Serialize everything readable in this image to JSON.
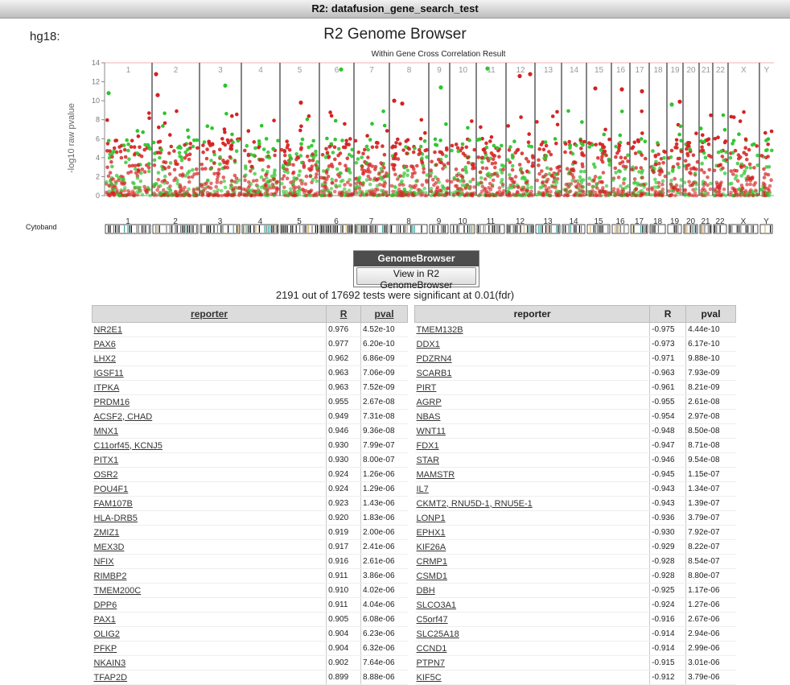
{
  "window_title": "R2: datafusion_gene_search_test",
  "genome": "hg18:",
  "browser_title": "R2 Genome Browser",
  "plot_title": "Within Gene Cross Correlation Result",
  "y_axis_label": "-log10 raw pvalue",
  "y_ticks": [
    "0",
    "2",
    "4",
    "6",
    "8",
    "10",
    "12",
    "14"
  ],
  "chromosomes": [
    "1",
    "2",
    "3",
    "4",
    "5",
    "6",
    "7",
    "8",
    "9",
    "10",
    "11",
    "12",
    "13",
    "14",
    "15",
    "16",
    "17",
    "18",
    "19",
    "20",
    "21",
    "22",
    "X",
    "Y"
  ],
  "cytoband_label": "Cytoband",
  "colors": {
    "positive": "#d42222",
    "negative": "#2cc52c",
    "header_bar": "#4d4d4d"
  },
  "genomebrowser": {
    "header": "GenomeBrowser",
    "button": "View in R2 GenomeBrowser"
  },
  "significance_text": "2191 out of 17692 tests were significant at 0.01(fdr)",
  "left_table": {
    "headers": [
      "reporter",
      "R",
      "pval"
    ],
    "rows": [
      [
        "NR2E1",
        "0.976",
        "4.52e-10"
      ],
      [
        "PAX6",
        "0.977",
        "6.20e-10"
      ],
      [
        "LHX2",
        "0.962",
        "6.86e-09"
      ],
      [
        "IGSF11",
        "0.963",
        "7.06e-09"
      ],
      [
        "ITPKA",
        "0.963",
        "7.52e-09"
      ],
      [
        "PRDM16",
        "0.955",
        "2.67e-08"
      ],
      [
        "ACSF2, CHAD",
        "0.949",
        "7.31e-08"
      ],
      [
        "MNX1",
        "0.946",
        "9.36e-08"
      ],
      [
        "C11orf45, KCNJ5",
        "0.930",
        "7.99e-07"
      ],
      [
        "PITX1",
        "0.930",
        "8.00e-07"
      ],
      [
        "OSR2",
        "0.924",
        "1.26e-06"
      ],
      [
        "POU4F1",
        "0.924",
        "1.29e-06"
      ],
      [
        "FAM107B",
        "0.923",
        "1.43e-06"
      ],
      [
        "HLA-DRB5",
        "0.920",
        "1.83e-06"
      ],
      [
        "ZMIZ1",
        "0.919",
        "2.00e-06"
      ],
      [
        "MEX3D",
        "0.917",
        "2.41e-06"
      ],
      [
        "NFIX",
        "0.916",
        "2.61e-06"
      ],
      [
        "RIMBP2",
        "0.911",
        "3.86e-06"
      ],
      [
        "TMEM200C",
        "0.910",
        "4.02e-06"
      ],
      [
        "DPP6",
        "0.911",
        "4.04e-06"
      ],
      [
        "PAX1",
        "0.905",
        "6.08e-06"
      ],
      [
        "OLIG2",
        "0.904",
        "6.23e-06"
      ],
      [
        "PFKP",
        "0.904",
        "6.32e-06"
      ],
      [
        "NKAIN3",
        "0.902",
        "7.64e-06"
      ],
      [
        "TFAP2D",
        "0.899",
        "8.88e-06"
      ]
    ]
  },
  "right_table": {
    "headers": [
      "reporter",
      "R",
      "pval"
    ],
    "rows": [
      [
        "TMEM132B",
        "-0.975",
        "4.44e-10"
      ],
      [
        "DDX1",
        "-0.973",
        "6.17e-10"
      ],
      [
        "PDZRN4",
        "-0.971",
        "9.88e-10"
      ],
      [
        "SCARB1",
        "-0.963",
        "7.93e-09"
      ],
      [
        "PIRT",
        "-0.961",
        "8.21e-09"
      ],
      [
        "AGRP",
        "-0.955",
        "2.61e-08"
      ],
      [
        "NBAS",
        "-0.954",
        "2.97e-08"
      ],
      [
        "WNT11",
        "-0.948",
        "8.50e-08"
      ],
      [
        "FDX1",
        "-0.947",
        "8.71e-08"
      ],
      [
        "STAR",
        "-0.946",
        "9.54e-08"
      ],
      [
        "MAMSTR",
        "-0.945",
        "1.15e-07"
      ],
      [
        "IL7",
        "-0.943",
        "1.34e-07"
      ],
      [
        "CKMT2, RNU5D-1, RNU5E-1",
        "-0.943",
        "1.39e-07"
      ],
      [
        "LONP1",
        "-0.936",
        "3.79e-07"
      ],
      [
        "EPHX1",
        "-0.930",
        "7.92e-07"
      ],
      [
        "KIF26A",
        "-0.929",
        "8.22e-07"
      ],
      [
        "CRMP1",
        "-0.928",
        "8.54e-07"
      ],
      [
        "CSMD1",
        "-0.928",
        "8.80e-07"
      ],
      [
        "DBH",
        "-0.925",
        "1.17e-06"
      ],
      [
        "SLCO3A1",
        "-0.924",
        "1.27e-06"
      ],
      [
        "C5orf47",
        "-0.916",
        "2.67e-06"
      ],
      [
        "SLC25A18",
        "-0.914",
        "2.94e-06"
      ],
      [
        "CCND1",
        "-0.914",
        "2.99e-06"
      ],
      [
        "PTPN7",
        "-0.915",
        "3.01e-06"
      ],
      [
        "KIF5C",
        "-0.912",
        "3.79e-06"
      ]
    ]
  }
}
